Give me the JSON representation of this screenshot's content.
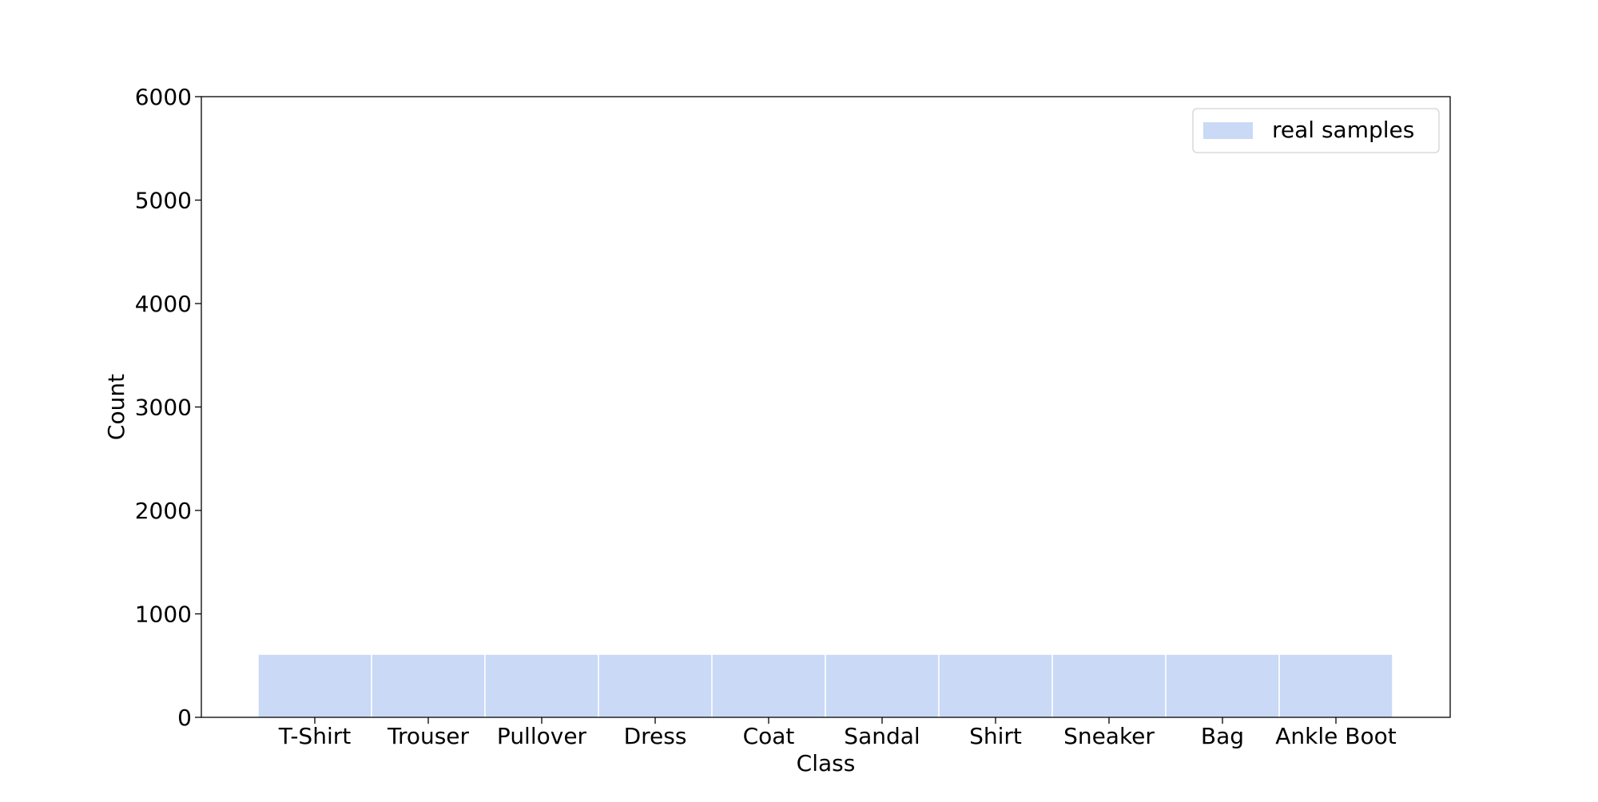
{
  "chart_data": {
    "type": "bar",
    "title": "",
    "xlabel": "Class",
    "ylabel": "Count",
    "categories": [
      "T-Shirt",
      "Trouser",
      "Pullover",
      "Dress",
      "Coat",
      "Sandal",
      "Shirt",
      "Sneaker",
      "Bag",
      "Ankle Boot"
    ],
    "series": [
      {
        "name": "real samples",
        "color": "#c9d9f6",
        "values": [
          610,
          610,
          610,
          610,
          610,
          610,
          610,
          610,
          610,
          610
        ]
      }
    ],
    "ylim": [
      0,
      6000
    ],
    "yticks": [
      "0",
      "1000",
      "2000",
      "3000",
      "4000",
      "5000",
      "6000"
    ],
    "grid": false,
    "legend_position": "top-right"
  }
}
